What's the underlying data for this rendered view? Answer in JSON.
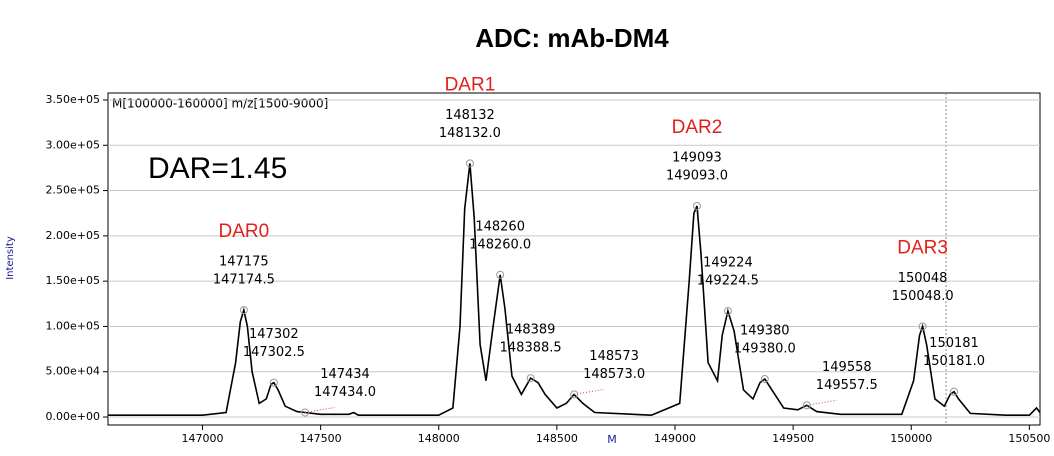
{
  "chart_data": {
    "type": "line",
    "title": "ADC: mAb-DM4",
    "note": "DAR=1.45",
    "range_label": "M[100000-160000] m/z[1500-9000]",
    "x_label": "M",
    "y_label": "Intensity",
    "dar_labels": [
      "DAR0",
      "DAR1",
      "DAR2",
      "DAR3"
    ],
    "xlim": [
      146600,
      150545
    ],
    "ylim": [
      -8800,
      357700
    ],
    "xticks": [
      147000,
      147500,
      148000,
      148500,
      149000,
      149500,
      150000,
      150500
    ],
    "yticks": [
      {
        "value": 0,
        "label": "0.00e+00"
      },
      {
        "value": 50000,
        "label": "5.00e+04"
      },
      {
        "value": 100000,
        "label": "1.00e+05"
      },
      {
        "value": 150000,
        "label": "1.50e+05"
      },
      {
        "value": 200000,
        "label": "2.00e+05"
      },
      {
        "value": 250000,
        "label": "2.50e+05"
      },
      {
        "value": 300000,
        "label": "3.00e+05"
      },
      {
        "value": 350000,
        "label": "3.50e+05"
      }
    ],
    "grid": true,
    "color": "#000000",
    "x": [
      146600,
      147000,
      147100,
      147140,
      147160,
      147175,
      147190,
      147210,
      147240,
      147270,
      147290,
      147302,
      147320,
      147350,
      147400,
      147434,
      147500,
      147620,
      147640,
      147660,
      148000,
      148060,
      148090,
      148110,
      148132,
      148150,
      148175,
      148200,
      148230,
      148260,
      148280,
      148310,
      148350,
      148389,
      148420,
      148450,
      148500,
      148540,
      148573,
      148610,
      148660,
      148900,
      149020,
      149060,
      149080,
      149093,
      149110,
      149140,
      149180,
      149200,
      149224,
      149250,
      149290,
      149330,
      149360,
      149380,
      149410,
      149460,
      149520,
      149558,
      149600,
      149700,
      149960,
      150010,
      150035,
      150048,
      150065,
      150100,
      150140,
      150165,
      150181,
      150200,
      150250,
      150400,
      150500,
      150530,
      150545
    ],
    "values": [
      2000,
      2000,
      5000,
      60000,
      105000,
      118000,
      100000,
      50000,
      15000,
      20000,
      36000,
      38000,
      30000,
      12000,
      6000,
      5000,
      3000,
      3000,
      5000,
      2000,
      2000,
      10000,
      100000,
      230000,
      280000,
      220000,
      80000,
      40000,
      100000,
      157000,
      120000,
      45000,
      25000,
      43000,
      38000,
      25000,
      10000,
      15000,
      25000,
      15000,
      5000,
      2000,
      15000,
      150000,
      225000,
      233000,
      180000,
      60000,
      40000,
      90000,
      117000,
      95000,
      30000,
      20000,
      38000,
      42000,
      30000,
      10000,
      8000,
      13000,
      6000,
      3000,
      3000,
      40000,
      90000,
      100000,
      80000,
      20000,
      12000,
      25000,
      28000,
      20000,
      4000,
      2000,
      2000,
      10000,
      5000
    ],
    "peaks": {
      "x": [
        147175,
        147302,
        147434,
        148132,
        148260,
        148389,
        148573,
        149093,
        149224,
        149380,
        149558,
        150048,
        150181
      ],
      "values": [
        118000,
        38000,
        5000,
        280000,
        157000,
        43000,
        25000,
        233000,
        117000,
        42000,
        13000,
        100000,
        28000
      ],
      "labels": [
        "147175",
        "147302",
        "147434",
        "148132",
        "148260",
        "148389",
        "148573",
        "149093",
        "149224",
        "149380",
        "149558",
        "150048",
        "150181"
      ],
      "exact_labels": [
        "147174.5",
        "147302.5",
        "147434.0",
        "148132.0",
        "148260.0",
        "148388.5",
        "148573.0",
        "149093.0",
        "149224.5",
        "149380.0",
        "149557.5",
        "150048.0",
        "150181.0"
      ]
    }
  }
}
